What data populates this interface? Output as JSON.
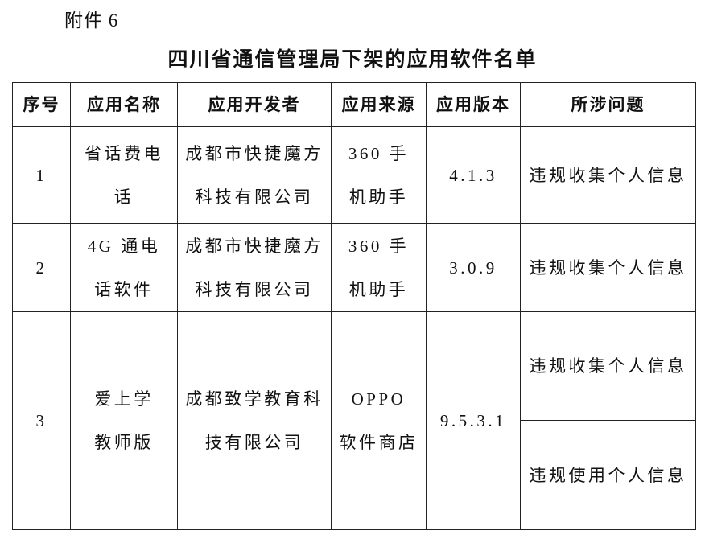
{
  "attachment_label": "附件 6",
  "title": "四川省通信管理局下架的应用软件名单",
  "table": {
    "headers": [
      "序号",
      "应用名称",
      "应用开发者",
      "应用来源",
      "应用版本",
      "所涉问题"
    ],
    "rows": [
      {
        "no": "1",
        "name": "省话费电话",
        "developer": "成都市快捷魔方科技有限公司",
        "source": "360 手机助手",
        "version": "4.1.3",
        "issues": [
          "违规收集个人信息"
        ]
      },
      {
        "no": "2",
        "name": "4G 通电话软件",
        "developer": "成都市快捷魔方科技有限公司",
        "source": "360 手机助手",
        "version": "3.0.9",
        "issues": [
          "违规收集个人信息"
        ]
      },
      {
        "no": "3",
        "name": "爱上学教师版",
        "developer": "成都致学教育科技有限公司",
        "source": "OPPO 软件商店",
        "version": "9.5.3.1",
        "issues": [
          "违规收集个人信息",
          "违规使用个人信息"
        ]
      }
    ]
  }
}
